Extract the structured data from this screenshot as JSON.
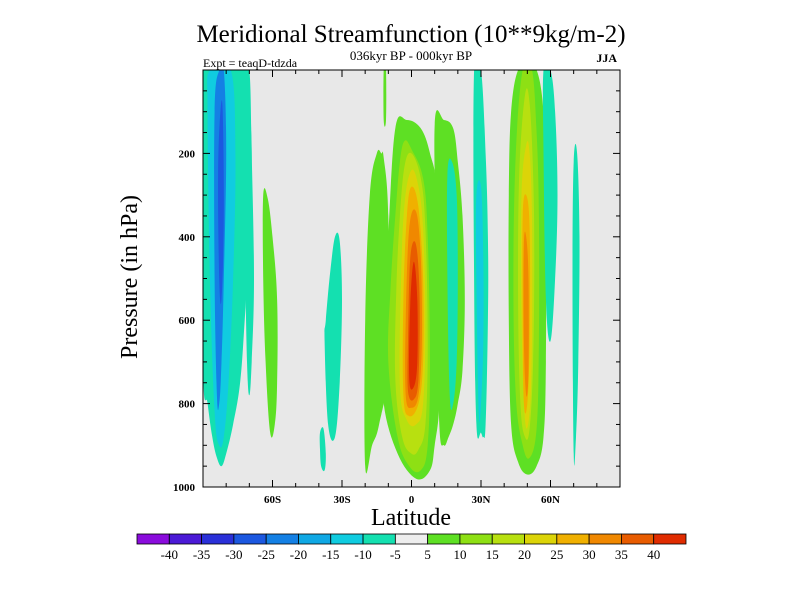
{
  "chart_data": {
    "type": "heatmap",
    "title": "Meridional Streamfunction (10**9kg/m-2)",
    "subtitle": "036kyr BP - 000kyr BP",
    "left_label": "Expt = teaqD-tdzda",
    "season": "JJA",
    "xlabel": "Latitude",
    "ylabel": "Pressure (in hPa)",
    "xlim": [
      -90,
      90
    ],
    "ylim": [
      1000,
      0
    ],
    "x_ticks": [
      {
        "value": -60,
        "label": "60S"
      },
      {
        "value": -30,
        "label": "30S"
      },
      {
        "value": 0,
        "label": "0"
      },
      {
        "value": 30,
        "label": "30N"
      },
      {
        "value": 60,
        "label": "60N"
      }
    ],
    "y_ticks": [
      {
        "value": 200,
        "label": "200"
      },
      {
        "value": 400,
        "label": "400"
      },
      {
        "value": 600,
        "label": "600"
      },
      {
        "value": 800,
        "label": "800"
      },
      {
        "value": 1000,
        "label": "1000"
      }
    ],
    "background_color": "#e8e8e8",
    "colorbar": {
      "labels": [
        "-40",
        "-35",
        "-30",
        "-25",
        "-20",
        "-15",
        "-10",
        "-5",
        "5",
        "10",
        "15",
        "20",
        "25",
        "30",
        "35",
        "40"
      ],
      "colors": [
        "#8a0cdc",
        "#4b1ad6",
        "#2a30d8",
        "#1c58e0",
        "#1480e4",
        "#10a8e4",
        "#10cce0",
        "#14e0b0",
        "#eeeeee",
        "#5ee024",
        "#8ee014",
        "#b8e010",
        "#dcd408",
        "#f0b000",
        "#f08800",
        "#e85c00",
        "#e02c00"
      ]
    },
    "contours": [
      {
        "name": "band-60s-outer",
        "level": -10,
        "color": "#14e0b0",
        "lat": [
          -90,
          -88,
          -82,
          -78,
          -75,
          -72,
          -70,
          -69,
          -70,
          -72,
          -74,
          -77,
          -80,
          -82,
          -84,
          -86,
          -88,
          -90
        ],
        "p": [
          0,
          0,
          0,
          0,
          0,
          0,
          100,
          200,
          400,
          600,
          750,
          850,
          920,
          950,
          930,
          880,
          800,
          700
        ]
      },
      {
        "name": "band-60s-mid",
        "level": -15,
        "color": "#10cce0",
        "lat": [
          -87,
          -78,
          -76,
          -77,
          -79,
          -81,
          -83,
          -85,
          -87,
          -88
        ],
        "p": [
          0,
          0,
          200,
          500,
          750,
          880,
          900,
          820,
          500,
          100
        ]
      },
      {
        "name": "band-60s-inner",
        "level": -20,
        "color": "#1480e4",
        "lat": [
          -83,
          -81,
          -80,
          -81,
          -82,
          -83,
          -84,
          -85,
          -85
        ],
        "p": [
          0,
          0,
          200,
          500,
          700,
          800,
          780,
          500,
          100
        ]
      },
      {
        "name": "band-60s-core",
        "level": -25,
        "color": "#1c58e0",
        "lat": [
          -82.5,
          -81.5,
          -81,
          -82,
          -83,
          -83.5
        ],
        "p": [
          100,
          100,
          350,
          550,
          500,
          250
        ]
      },
      {
        "name": "band-60s-side",
        "level": -10,
        "color": "#14e0b0",
        "lat": [
          -73,
          -70,
          -69,
          -68,
          -69,
          -70,
          -71,
          -72
        ],
        "p": [
          0,
          0,
          200,
          500,
          700,
          780,
          700,
          400
        ]
      },
      {
        "name": "band-60s-right-green",
        "level": 5,
        "color": "#5ee024",
        "lat": [
          -64,
          -62,
          -60,
          -58,
          -58,
          -59,
          -61,
          -63,
          -64
        ],
        "p": [
          300,
          310,
          400,
          550,
          750,
          850,
          870,
          700,
          500
        ]
      },
      {
        "name": "band-35s",
        "level": -10,
        "color": "#14e0b0",
        "lat": [
          -37,
          -35,
          -33,
          -31,
          -30,
          -31,
          -33,
          -36,
          -37.5
        ],
        "p": [
          600,
          480,
          400,
          410,
          550,
          750,
          880,
          850,
          650
        ]
      },
      {
        "name": "small-cyan-patch",
        "level": -10,
        "color": "#14e0b0",
        "lat": [
          -39.5,
          -38,
          -37,
          -37.5,
          -39,
          -39.5
        ],
        "p": [
          870,
          860,
          920,
          960,
          950,
          910
        ]
      },
      {
        "name": "tiny-green-top",
        "level": 5,
        "color": "#5ee024",
        "lat": [
          -12,
          -11,
          -11,
          -12
        ],
        "p": [
          0,
          0,
          120,
          120
        ]
      },
      {
        "name": "eq-left-green",
        "level": 5,
        "color": "#5ee024",
        "lat": [
          -20,
          -17,
          -14,
          -10,
          -10,
          -12,
          -13,
          -15,
          -18,
          -20
        ],
        "p": [
          950,
          900,
          850,
          700,
          350,
          210,
          200,
          200,
          300,
          600
        ]
      },
      {
        "name": "eq-outer",
        "level": 5,
        "color": "#5ee024",
        "lat": [
          -12,
          -6,
          2,
          8,
          10,
          12,
          12,
          11,
          8,
          4,
          -2,
          -7,
          -10,
          -12
        ],
        "p": [
          800,
          920,
          980,
          960,
          900,
          800,
          600,
          300,
          200,
          140,
          120,
          140,
          400,
          650
        ]
      },
      {
        "name": "eq-10",
        "level": 10,
        "color": "#8ee014",
        "lat": [
          -10,
          -6,
          -1,
          4,
          7,
          8,
          7,
          5,
          0,
          -3,
          -5,
          -7,
          -9
        ],
        "p": [
          700,
          880,
          950,
          960,
          900,
          700,
          400,
          260,
          190,
          170,
          220,
          350,
          520
        ]
      },
      {
        "name": "eq-15",
        "level": 15,
        "color": "#b8e010",
        "lat": [
          -7,
          -4,
          0,
          3,
          6,
          7,
          6,
          4,
          0,
          -3,
          -5,
          -6.5
        ],
        "p": [
          740,
          880,
          920,
          910,
          850,
          650,
          380,
          260,
          200,
          230,
          350,
          520
        ]
      },
      {
        "name": "eq-20",
        "level": 20,
        "color": "#dcd408",
        "lat": [
          -5,
          -2,
          2,
          5,
          6,
          5,
          3,
          0,
          -3,
          -4.5
        ],
        "p": [
          760,
          840,
          850,
          800,
          600,
          380,
          280,
          240,
          320,
          500
        ]
      },
      {
        "name": "eq-25",
        "level": 25,
        "color": "#f0b000",
        "lat": [
          -3.5,
          -1,
          3,
          5,
          5,
          3,
          0,
          -2,
          -3.5
        ],
        "p": [
          780,
          830,
          800,
          700,
          500,
          330,
          280,
          350,
          550
        ]
      },
      {
        "name": "eq-30",
        "level": 30,
        "color": "#f08800",
        "lat": [
          -2.5,
          0,
          3,
          4.5,
          4,
          2,
          -1,
          -2.5
        ],
        "p": [
          780,
          810,
          780,
          650,
          450,
          340,
          380,
          600
        ]
      },
      {
        "name": "eq-35",
        "level": 35,
        "color": "#e85c00",
        "lat": [
          -1.5,
          1,
          3,
          3.5,
          2,
          -0.5,
          -1.5
        ],
        "p": [
          770,
          790,
          740,
          550,
          420,
          450,
          650
        ]
      },
      {
        "name": "eq-core",
        "level": 40,
        "color": "#e02c00",
        "lat": [
          -1,
          1,
          2.5,
          2.5,
          1,
          -0.5
        ],
        "p": [
          740,
          760,
          700,
          550,
          460,
          560
        ]
      },
      {
        "name": "band-30n-green",
        "level": 5,
        "color": "#5ee024",
        "lat": [
          10,
          14,
          18,
          20,
          22,
          23,
          22,
          20,
          18,
          16,
          14,
          12,
          11
        ],
        "p": [
          130,
          120,
          140,
          220,
          350,
          550,
          720,
          800,
          850,
          880,
          900,
          850,
          500
        ]
      },
      {
        "name": "band-30n-cyan",
        "level": -10,
        "color": "#14e0b0",
        "lat": [
          27,
          30,
          32,
          33,
          33,
          32,
          31,
          30,
          28,
          27
        ],
        "p": [
          0,
          0,
          200,
          400,
          600,
          850,
          880,
          870,
          850,
          500
        ]
      },
      {
        "name": "band-30n-cyan-b",
        "level": -10,
        "color": "#14e0b0",
        "lat": [
          15.5,
          17.5,
          19.5,
          20,
          19.5,
          18,
          16.5,
          15.5
        ],
        "p": [
          250,
          220,
          300,
          500,
          700,
          800,
          780,
          500
        ]
      },
      {
        "name": "band-30n-deep",
        "level": -15,
        "color": "#10cce0",
        "lat": [
          28,
          30,
          31,
          31,
          30,
          29,
          28
        ],
        "p": [
          300,
          280,
          450,
          650,
          800,
          820,
          500
        ]
      },
      {
        "name": "band-50n-outer",
        "level": 5,
        "color": "#5ee024",
        "lat": [
          43,
          46,
          50,
          54,
          57,
          58,
          58,
          57,
          54,
          50,
          46,
          43,
          42,
          42
        ],
        "p": [
          100,
          0,
          0,
          0,
          100,
          300,
          700,
          880,
          950,
          970,
          940,
          850,
          600,
          300
        ]
      },
      {
        "name": "band-50n-10",
        "level": 10,
        "color": "#8ee014",
        "lat": [
          45,
          48,
          52,
          54,
          55,
          55,
          54,
          51,
          48,
          45,
          44
        ],
        "p": [
          200,
          0,
          0,
          150,
          350,
          650,
          860,
          930,
          900,
          780,
          500
        ]
      },
      {
        "name": "band-50n-15",
        "level": 15,
        "color": "#b8e010",
        "lat": [
          46.5,
          49,
          51,
          52.5,
          53,
          52.5,
          51,
          49,
          47,
          46
        ],
        "p": [
          250,
          60,
          80,
          250,
          450,
          700,
          860,
          880,
          800,
          550
        ]
      },
      {
        "name": "band-50n-20",
        "level": 20,
        "color": "#dcd408",
        "lat": [
          47.5,
          49.5,
          51,
          52,
          52,
          51,
          49,
          47.5
        ],
        "p": [
          300,
          180,
          200,
          350,
          650,
          820,
          840,
          600
        ]
      },
      {
        "name": "band-50n-25",
        "level": 25,
        "color": "#f0b000",
        "lat": [
          48,
          49.5,
          51,
          51,
          50,
          48.5,
          48
        ],
        "p": [
          350,
          300,
          380,
          650,
          800,
          800,
          600
        ]
      },
      {
        "name": "band-50n-core",
        "level": 30,
        "color": "#f08800",
        "lat": [
          48.5,
          49.5,
          50.5,
          50.5,
          49.5,
          48.5
        ],
        "p": [
          420,
          400,
          500,
          720,
          780,
          650
        ]
      },
      {
        "name": "band-60n-cyan",
        "level": -10,
        "color": "#14e0b0",
        "lat": [
          57,
          60,
          62,
          63,
          62,
          60,
          58,
          57
        ],
        "p": [
          0,
          0,
          100,
          300,
          500,
          650,
          550,
          200
        ]
      },
      {
        "name": "band-70n-cyan",
        "level": -10,
        "color": "#14e0b0",
        "lat": [
          70,
          71.5,
          72.5,
          72,
          71,
          70,
          69.5
        ],
        "p": [
          220,
          200,
          400,
          700,
          880,
          920,
          500
        ]
      }
    ]
  }
}
